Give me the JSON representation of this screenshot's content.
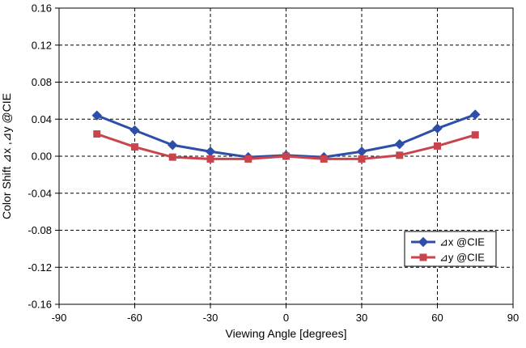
{
  "chart_data": {
    "type": "line",
    "xlabel": "Viewing Angle [degrees]",
    "ylabel": "Color Shift ⊿x ,⊿y @CIE",
    "xlim": [
      -90,
      90
    ],
    "ylim": [
      -0.16,
      0.16
    ],
    "x_ticks": [
      -90,
      -60,
      -30,
      0,
      30,
      60,
      90
    ],
    "x_tick_labels": [
      "-90",
      "-60",
      "-30",
      "0",
      "30",
      "60",
      "90"
    ],
    "y_ticks": [
      0.16,
      0.12,
      0.08,
      0.04,
      0.0,
      -0.04,
      -0.08,
      -0.12,
      -0.16
    ],
    "y_tick_labels": [
      "0.16",
      "0.12",
      "0.08",
      "0.04",
      "0.00",
      "-0.04",
      "-0.08",
      "-0.12",
      "-0.16"
    ],
    "grid": true,
    "grid_style": "dashed",
    "legend_position": "bottom-right",
    "x": [
      -75,
      -60,
      -45,
      -30,
      -15,
      0,
      15,
      30,
      45,
      60,
      75
    ],
    "series": [
      {
        "name": "⊿x @CIE",
        "color": "#2E4FA8",
        "marker": "diamond",
        "values": [
          0.044,
          0.028,
          0.012,
          0.005,
          -0.001,
          0.001,
          -0.001,
          0.005,
          0.013,
          0.03,
          0.045
        ]
      },
      {
        "name": "⊿y @CIE",
        "color": "#C9444C",
        "marker": "square",
        "values": [
          0.024,
          0.01,
          -0.001,
          -0.003,
          -0.003,
          0.0,
          -0.003,
          -0.003,
          0.001,
          0.011,
          0.023
        ]
      }
    ]
  }
}
